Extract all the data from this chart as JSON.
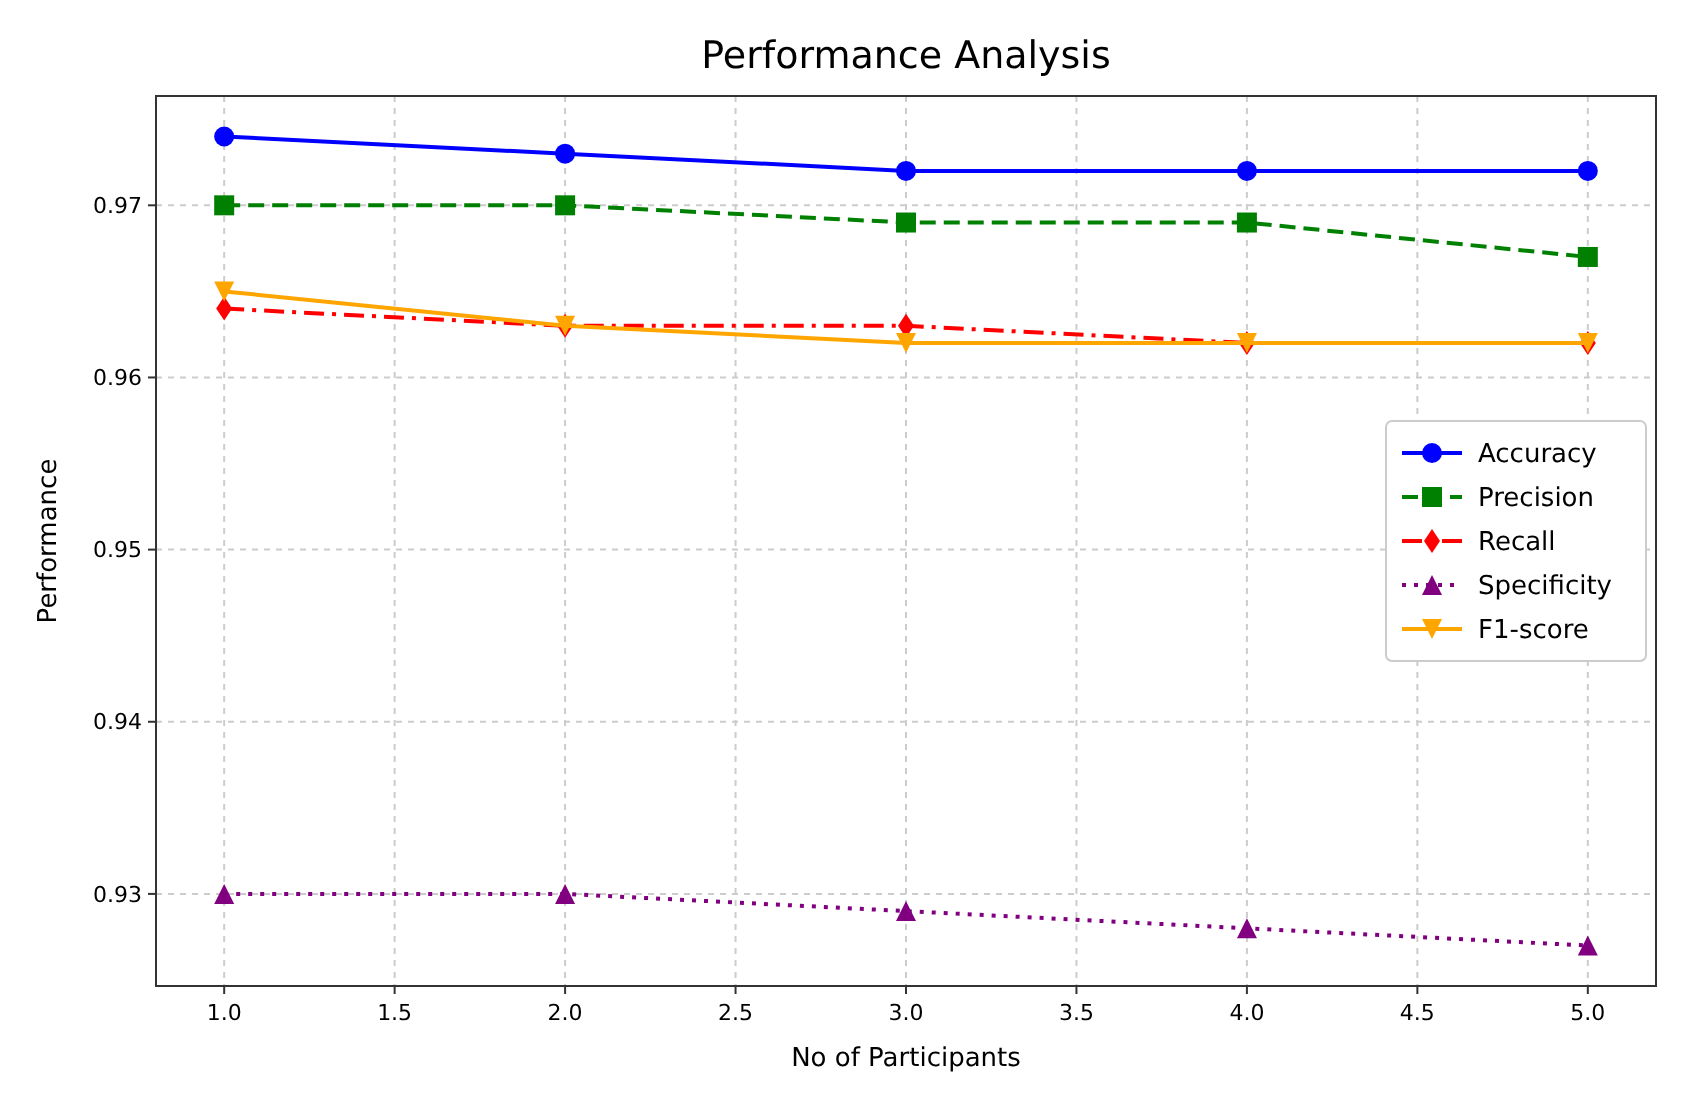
{
  "chart_data": {
    "type": "line",
    "title": "Performance Analysis",
    "xlabel": "No of Participants",
    "ylabel": "Performance",
    "x": [
      1,
      2,
      3,
      4,
      5
    ],
    "series": [
      {
        "name": "Accuracy",
        "color": "#0000ff",
        "values": [
          0.974,
          0.973,
          0.972,
          0.972,
          0.972
        ],
        "marker": "circle",
        "line_style": "solid"
      },
      {
        "name": "Precision",
        "color": "#008000",
        "values": [
          0.97,
          0.97,
          0.969,
          0.969,
          0.967
        ],
        "marker": "square",
        "line_style": "dashed"
      },
      {
        "name": "Recall",
        "color": "#ff0000",
        "values": [
          0.964,
          0.963,
          0.963,
          0.962,
          0.962
        ],
        "marker": "diamond",
        "line_style": "dashdot"
      },
      {
        "name": "Specificity",
        "color": "#800080",
        "values": [
          0.93,
          0.93,
          0.929,
          0.928,
          0.927
        ],
        "marker": "triangle",
        "line_style": "dotted"
      },
      {
        "name": "F1-score",
        "color": "#ffa500",
        "values": [
          0.965,
          0.963,
          0.962,
          0.962,
          0.962
        ],
        "marker": "triangle-down",
        "line_style": "solid"
      }
    ],
    "xlim": [
      0.8,
      5.2
    ],
    "xticks": [
      {
        "value": 1,
        "label": "1.0"
      },
      1.5,
      {
        "value": 2,
        "label": "2.0"
      },
      2.5,
      {
        "value": 3,
        "label": "3.0"
      },
      3.5,
      {
        "value": 4,
        "label": "4.0"
      },
      4.5,
      {
        "value": 5,
        "label": "5.0"
      }
    ],
    "ylim": [
      0.92465,
      0.97635
    ],
    "yticks": [
      {
        "value": 0.93,
        "label": "0.93"
      },
      {
        "value": 0.94,
        "label": "0.94"
      },
      {
        "value": 0.95,
        "label": "0.95"
      },
      {
        "value": 0.96,
        "label": "0.96"
      },
      {
        "value": 0.97,
        "label": "0.97"
      }
    ],
    "grid": true,
    "legend": "right"
  }
}
